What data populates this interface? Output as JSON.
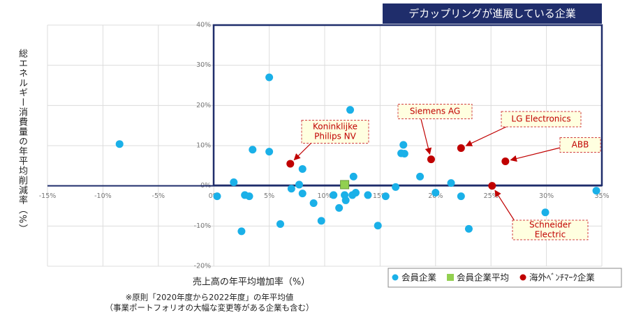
{
  "chart_data": {
    "type": "scatter",
    "title": "デカップリングが進展している企業",
    "x_label": "売上高の年平均増加率（%）",
    "y_label": "総エネルギー消費量の年平均削減率（%）",
    "footnote": [
      "※原則「2020年度から2022年度」の年平均値",
      "（事業ポートフォリオの大幅な変更等がある企業も含む）"
    ],
    "xlim": [
      -15,
      35
    ],
    "ylim": [
      -20,
      40
    ],
    "xticks": [
      {
        "value": -15,
        "label": "-15%"
      },
      {
        "value": -10,
        "label": "-10%"
      },
      {
        "value": -5,
        "label": "-5%"
      },
      {
        "value": 0,
        "label": "0%"
      },
      {
        "value": 5,
        "label": "5%"
      },
      {
        "value": 10,
        "label": "10%"
      },
      {
        "value": 15,
        "label": "15%"
      },
      {
        "value": 20,
        "label": "20%"
      },
      {
        "value": 25,
        "label": "25%"
      },
      {
        "value": 30,
        "label": "30%"
      },
      {
        "value": 35,
        "label": "35%"
      }
    ],
    "yticks": [
      {
        "value": -20,
        "label": "-20%"
      },
      {
        "value": -10,
        "label": "-10%"
      },
      {
        "value": 0,
        "label": "0%"
      },
      {
        "value": 10,
        "label": "10%"
      },
      {
        "value": 20,
        "label": "20%"
      },
      {
        "value": 30,
        "label": "30%"
      },
      {
        "value": 40,
        "label": "40%"
      }
    ],
    "grid": true,
    "series": [
      {
        "name": "会員企業",
        "color": "#1ab0e8",
        "marker": "circle",
        "x": [
          -8.5,
          5.0,
          12.3,
          1.8,
          0.3,
          2.8,
          3.2,
          3.5,
          5.0,
          8.0,
          7.0,
          7.7,
          8.0,
          9.0,
          2.5,
          6.0,
          9.7,
          10.8,
          11.3,
          11.8,
          11.9,
          12.5,
          12.8,
          12.6,
          13.9,
          15.5,
          14.8,
          16.4,
          16.9,
          17.1,
          17.2,
          18.6,
          20.0,
          21.4,
          22.3,
          23.0,
          29.9,
          34.5
        ],
        "values": [
          10.4,
          27,
          18.9,
          0.9,
          -2.6,
          -2.3,
          -2.6,
          9.0,
          8.5,
          4.2,
          -0.7,
          0.3,
          -1.9,
          -4.3,
          -11.3,
          -9.5,
          -8.7,
          -2.3,
          -5.5,
          -2.3,
          -3.6,
          -2.3,
          -1.7,
          2.3,
          -2.3,
          -2.6,
          -9.9,
          -0.3,
          8.1,
          10.2,
          8.0,
          2.3,
          -1.7,
          0.7,
          -2.6,
          -10.7,
          -6.6,
          -1.2
        ]
      },
      {
        "name": "会員企業平均",
        "color": "#92d050",
        "marker": "square",
        "x": [
          11.8
        ],
        "values": [
          0.3
        ]
      },
      {
        "name": "海外ﾍﾞﾝﾁﾏｰｸ企業",
        "color": "#c00000",
        "marker": "circle",
        "x": [
          6.9,
          19.6,
          22.3,
          26.3,
          25.1
        ],
        "values": [
          5.5,
          6.6,
          9.4,
          6.1,
          0
        ]
      }
    ],
    "annotations": [
      {
        "text": [
          "Koninklijke",
          "Philips NV"
        ],
        "point": 0
      },
      {
        "text": [
          "Siemens AG"
        ],
        "point": 1
      },
      {
        "text": [
          "LG Electronics"
        ],
        "point": 2
      },
      {
        "text": [
          "ABB"
        ],
        "point": 3
      },
      {
        "text": [
          "Schneider",
          "Electric"
        ],
        "point": 4
      }
    ]
  }
}
